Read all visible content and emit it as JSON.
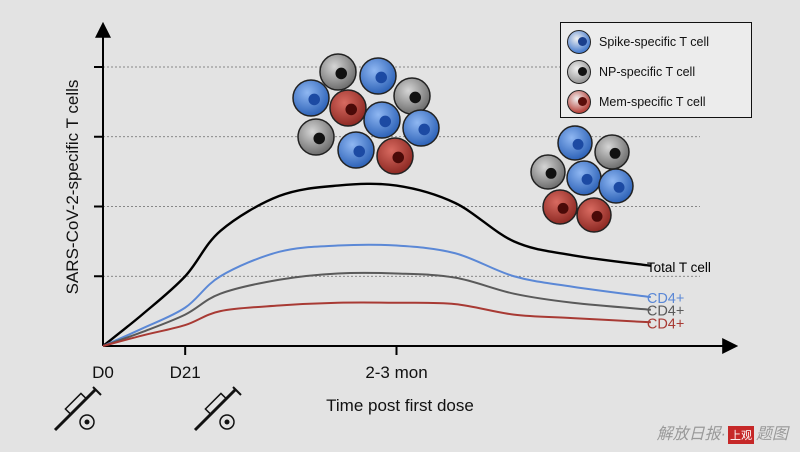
{
  "chart_data": {
    "type": "line",
    "ylabel": "SARS-CoV-2-specific T cells",
    "xlabel": "Time post first dose",
    "x_ticks": [
      "D0",
      "D21",
      "2-3 mon"
    ],
    "ylim": [
      0,
      4
    ],
    "y_gridlines": [
      1,
      2,
      3,
      4
    ],
    "x_tick_positions": [
      0,
      21,
      75
    ],
    "xlim": [
      0,
      150
    ],
    "series": [
      {
        "name": "Total T cell",
        "color": "#000000",
        "x": [
          0,
          10,
          21,
          30,
          45,
          60,
          75,
          90,
          105,
          120,
          140
        ],
        "y": [
          0,
          0.45,
          1.0,
          1.65,
          2.15,
          2.3,
          2.3,
          2.05,
          1.5,
          1.3,
          1.15
        ]
      },
      {
        "name": "CD4+",
        "color": "#5b88d6",
        "x": [
          0,
          10,
          21,
          30,
          45,
          60,
          75,
          90,
          105,
          120,
          140
        ],
        "y": [
          0,
          0.25,
          0.55,
          1.0,
          1.35,
          1.44,
          1.44,
          1.33,
          1.0,
          0.85,
          0.7
        ]
      },
      {
        "name": "CD4+",
        "color": "#5a5a5a",
        "x": [
          0,
          10,
          21,
          30,
          45,
          60,
          75,
          90,
          105,
          120,
          140
        ],
        "y": [
          0,
          0.2,
          0.45,
          0.75,
          0.95,
          1.04,
          1.04,
          0.98,
          0.75,
          0.62,
          0.52
        ]
      },
      {
        "name": "CD4+",
        "color": "#a83a34",
        "x": [
          0,
          10,
          21,
          30,
          45,
          60,
          75,
          90,
          105,
          120,
          140
        ],
        "y": [
          0,
          0.15,
          0.3,
          0.5,
          0.58,
          0.62,
          0.62,
          0.6,
          0.45,
          0.4,
          0.34
        ]
      }
    ],
    "legend": {
      "placement": "top-right",
      "items": [
        {
          "label": "Spike-specific T cell",
          "fill": "#4a7fd0",
          "nucleus": "#1a3f8c"
        },
        {
          "label": "NP-specific T cell",
          "fill": "#9a9a9a",
          "nucleus": "#111111"
        },
        {
          "label": "Mem-specific T cell",
          "fill": "#b9473f",
          "nucleus": "#5a0e0a"
        }
      ]
    }
  },
  "watermark": {
    "text": "解放日报·",
    "seal": "上观",
    "suffix": "题图"
  }
}
